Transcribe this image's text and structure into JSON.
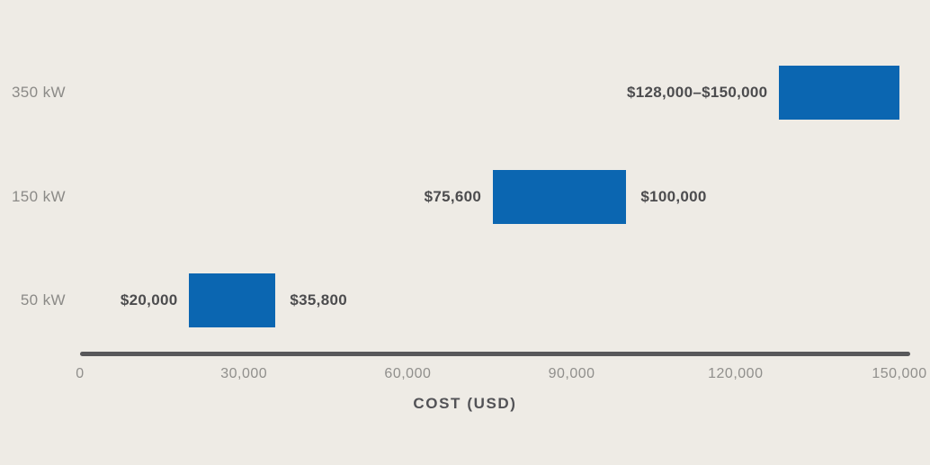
{
  "chart_data": {
    "type": "bar",
    "subtype": "horizontal-range",
    "title": "",
    "xlabel": "COST (USD)",
    "ylabel": "",
    "categories": [
      "350 kW",
      "150 kW",
      "50 kW"
    ],
    "x_tick_labels": [
      "0",
      "30,000",
      "60,000",
      "90,000",
      "120,000",
      "150,000"
    ],
    "x_tick_values": [
      0,
      30000,
      60000,
      90000,
      120000,
      150000
    ],
    "xlim": [
      0,
      150000
    ],
    "grid": "off",
    "legend": "none",
    "rows": [
      {
        "category": "350 kW",
        "range_min": 128000,
        "range_max": 150000,
        "label_before_bar": "$128,000–$150,000",
        "label_after_bar": ""
      },
      {
        "category": "150 kW",
        "range_min": 75600,
        "range_max": 100000,
        "label_before_bar": "$75,600",
        "label_after_bar": "$100,000"
      },
      {
        "category": "50 kW",
        "range_min": 20000,
        "range_max": 35800,
        "label_before_bar": "$20,000",
        "label_after_bar": "$35,800"
      }
    ],
    "colors": {
      "bar": "#0b66b1",
      "background": "#eeebe5",
      "axis_line": "#58585a",
      "tick_label": "#908f8c",
      "category_label": "#8b8a87",
      "value_label": "#4c4c4e",
      "axis_title": "#525256"
    }
  }
}
